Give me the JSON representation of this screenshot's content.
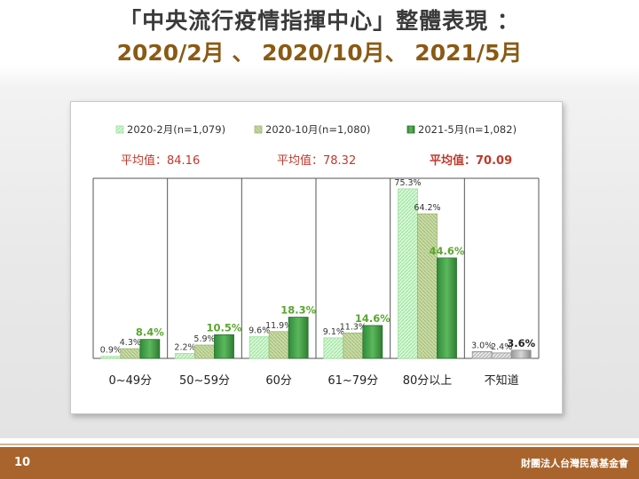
{
  "slide": {
    "title": "「中央流行疫情指揮中心」整體表現 ：",
    "subtitle": "2020/2月 、 2020/10月、 2021/5月",
    "page_number": "10",
    "organization": "財團法人台灣民意基金會"
  },
  "chart_data": {
    "type": "bar",
    "categories": [
      "0~49分",
      "50~59分",
      "60分",
      "61~79分",
      "80分以上",
      "不知道"
    ],
    "series": [
      {
        "name": "2020-2月(n=1,079)",
        "values": [
          0.9,
          2.2,
          9.6,
          9.1,
          75.3,
          3.0
        ],
        "labels": [
          "0.9%",
          "2.2%",
          "9.6%",
          "9.1%",
          "75.3%",
          "3.0%"
        ],
        "mean_text": "平均值：84.16",
        "color": "#b9efb9"
      },
      {
        "name": "2020-10月(n=1,080)",
        "values": [
          4.3,
          5.9,
          11.9,
          11.3,
          64.2,
          2.4
        ],
        "labels": [
          "4.3%",
          "5.9%",
          "11.9%",
          "11.3%",
          "64.2%",
          "2.4%"
        ],
        "mean_text": "平均值：78.32",
        "color": "#b5cc8e"
      },
      {
        "name": "2021-5月(n=1,082)",
        "values": [
          8.4,
          10.5,
          18.3,
          14.6,
          44.6,
          3.6
        ],
        "labels": [
          "8.4%",
          "10.5%",
          "18.3%",
          "14.6%",
          "44.6%",
          "3.6%"
        ],
        "mean_text": "平均值：70.09",
        "color": "#43a047"
      }
    ],
    "unknown_color": "#c8c8c8",
    "mean_color": "#c0392b",
    "highlight_label_color": "#5aa62f",
    "ylim": [
      0,
      80
    ],
    "legend_position": "top",
    "grid": false
  }
}
